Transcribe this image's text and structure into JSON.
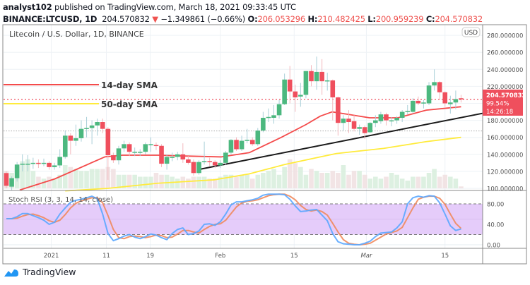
{
  "header": {
    "author": "analyst102",
    "published_text": "published on TradingView.com, March 18, 2021 09:33:45 UTC",
    "symbol": "BINANCE:LTCUSD, 1D",
    "last": "204.570832",
    "change": "−1.349861 (−0.66%)",
    "change_direction": "down",
    "o_label": "O:",
    "o": "206.053296",
    "h_label": "H:",
    "h": "210.482425",
    "l_label": "L:",
    "l": "200.959239",
    "c_label": "C:",
    "c": "204.570832"
  },
  "chart": {
    "title": "Litecoin / U.S. Dollar, 1D, BINANCE",
    "currency_badge": "USD",
    "legend": [
      {
        "label": "14-day SMA",
        "color": "#f44b4b"
      },
      {
        "label": "50-day SMA",
        "color": "#ffeb3b"
      }
    ],
    "price_tag": {
      "price": "204.570832",
      "percent": "99.54%",
      "countdown": "14:26:18",
      "color": "#ef4f5d"
    },
    "price_axis_labels": [
      "280.000000",
      "260.000000",
      "240.000000",
      "220.000000",
      "180.000000",
      "160.000000",
      "140.000000",
      "120.000000",
      "100.000000"
    ],
    "rsi_title": "Stoch RSI (3, 3, 14, 14, close)",
    "rsi_axis_labels": [
      "80.00",
      "40.00",
      "0.00"
    ],
    "date_labels": [
      {
        "label": "2021",
        "candle": 8.4
      },
      {
        "label": "11",
        "candle": 18.7
      },
      {
        "label": "19",
        "candle": 26.9
      },
      {
        "label": "Feb",
        "candle": 40
      },
      {
        "label": "15",
        "candle": 53.8
      },
      {
        "label": "Mar",
        "candle": 67.3
      },
      {
        "label": "15",
        "candle": 82
      }
    ],
    "colors": {
      "up": "#26a69a",
      "up_body": "#4cb87f",
      "down": "#ef4f5d",
      "k": "#5aa7ff",
      "d": "#f08a5d",
      "rsi_band": "#e5ccfa",
      "trendline": "#1a1a1a"
    }
  },
  "chart_data": {
    "type": "candlestick",
    "ylim": [
      100,
      285
    ],
    "current_price": 204.570832,
    "reference_line": 167.5,
    "ohlc": [
      [
        118,
        120,
        100,
        103
      ],
      [
        102,
        114,
        98,
        112
      ],
      [
        112,
        131,
        108,
        128
      ],
      [
        128,
        140,
        120,
        129
      ],
      [
        129,
        139,
        120,
        129
      ],
      [
        129,
        136,
        123,
        130
      ],
      [
        130,
        134,
        124,
        129
      ],
      [
        129,
        135,
        126,
        130
      ],
      [
        130,
        132,
        122,
        125
      ],
      [
        125,
        130,
        122,
        127
      ],
      [
        127,
        146,
        124,
        137
      ],
      [
        137,
        168,
        135,
        162
      ],
      [
        162,
        165,
        140,
        156
      ],
      [
        156,
        175,
        150,
        159
      ],
      [
        159,
        180,
        155,
        170
      ],
      [
        170,
        184,
        160,
        171
      ],
      [
        171,
        180,
        152,
        174
      ],
      [
        174,
        182,
        162,
        178
      ],
      [
        178,
        182,
        165,
        170
      ],
      [
        170,
        172,
        110,
        139
      ],
      [
        139,
        142,
        130,
        133
      ],
      [
        133,
        150,
        128,
        147
      ],
      [
        147,
        156,
        143,
        152
      ],
      [
        152,
        154,
        138,
        143
      ],
      [
        143,
        148,
        138,
        143
      ],
      [
        143,
        146,
        138,
        143
      ],
      [
        143,
        154,
        140,
        152
      ],
      [
        152,
        160,
        143,
        152
      ],
      [
        151,
        154,
        145,
        150
      ],
      [
        150,
        152,
        125,
        129
      ],
      [
        129,
        140,
        122,
        137
      ],
      [
        137,
        142,
        132,
        137
      ],
      [
        137,
        143,
        133,
        140
      ],
      [
        140,
        153,
        130,
        134
      ],
      [
        134,
        138,
        128,
        130
      ],
      [
        131,
        134,
        115,
        118
      ],
      [
        118,
        133,
        116,
        131
      ],
      [
        131,
        155,
        128,
        132
      ],
      [
        132,
        136,
        126,
        131
      ],
      [
        131,
        133,
        124,
        127
      ],
      [
        127,
        133,
        124,
        130
      ],
      [
        130,
        144,
        128,
        142
      ],
      [
        142,
        158,
        140,
        157
      ],
      [
        157,
        160,
        144,
        146
      ],
      [
        146,
        162,
        144,
        156
      ],
      [
        156,
        170,
        153,
        157
      ],
      [
        157,
        160,
        150,
        152
      ],
      [
        152,
        171,
        150,
        168
      ],
      [
        168,
        190,
        166,
        183
      ],
      [
        183,
        194,
        178,
        184
      ],
      [
        183,
        198,
        176,
        186
      ],
      [
        186,
        204,
        182,
        199
      ],
      [
        199,
        235,
        198,
        228
      ],
      [
        228,
        244,
        200,
        214
      ],
      [
        214,
        222,
        190,
        207
      ],
      [
        208,
        224,
        196,
        210
      ],
      [
        210,
        238,
        206,
        238
      ],
      [
        238,
        245,
        220,
        226
      ],
      [
        226,
        255,
        216,
        237
      ],
      [
        237,
        252,
        210,
        226
      ],
      [
        226,
        236,
        215,
        227
      ],
      [
        227,
        228,
        180,
        207
      ],
      [
        207,
        208,
        162,
        177
      ],
      [
        177,
        186,
        168,
        182
      ],
      [
        182,
        192,
        165,
        178
      ],
      [
        179,
        186,
        167,
        170
      ],
      [
        170,
        175,
        163,
        172
      ],
      [
        172,
        174,
        158,
        165
      ],
      [
        166,
        178,
        165,
        177
      ],
      [
        177,
        186,
        172,
        180
      ],
      [
        179,
        190,
        176,
        187
      ],
      [
        187,
        189,
        174,
        180
      ],
      [
        180,
        184,
        173,
        180
      ],
      [
        180,
        185,
        176,
        183
      ],
      [
        183,
        192,
        178,
        190
      ],
      [
        190,
        198,
        187,
        191
      ],
      [
        190,
        206,
        188,
        203
      ],
      [
        203,
        208,
        198,
        200
      ],
      [
        200,
        204,
        194,
        201
      ],
      [
        200,
        225,
        198,
        221
      ],
      [
        221,
        240,
        215,
        225
      ],
      [
        225,
        226,
        205,
        213
      ],
      [
        213,
        214,
        196,
        200
      ],
      [
        199,
        209,
        188,
        201
      ],
      [
        201,
        215,
        193,
        205
      ],
      [
        206,
        210,
        201,
        204.57
      ]
    ],
    "volume_relative": [
      0.45,
      0.4,
      0.55,
      0.7,
      0.75,
      0.45,
      0.3,
      0.25,
      0.3,
      0.25,
      0.35,
      0.6,
      0.55,
      0.5,
      0.45,
      0.45,
      0.5,
      0.5,
      0.5,
      0.55,
      0.5,
      0.35,
      0.35,
      0.35,
      0.35,
      0.3,
      0.3,
      0.3,
      0.4,
      0.35,
      0.35,
      0.3,
      0.25,
      0.3,
      0.25,
      0.3,
      0.3,
      0.3,
      0.25,
      0.25,
      0.3,
      0.35,
      0.35,
      0.3,
      0.35,
      0.35,
      0.25,
      0.35,
      0.4,
      0.45,
      0.5,
      0.35,
      0.55,
      0.75,
      0.65,
      0.55,
      0.35,
      0.5,
      0.45,
      0.4,
      0.4,
      0.45,
      0.4,
      0.6,
      0.35,
      0.45,
      0.45,
      0.35,
      0.25,
      0.3,
      0.25,
      0.3,
      0.4,
      0.35,
      0.25,
      0.2,
      0.3,
      0.3,
      0.3,
      0.4,
      0.5,
      0.3,
      0.35,
      0.3,
      0.25,
      0.05
    ],
    "sma14": [
      [
        2.5,
        98
      ],
      [
        9,
        111
      ],
      [
        18.4,
        137
      ],
      [
        21.7,
        139
      ],
      [
        28.3,
        139
      ],
      [
        33.6,
        138
      ],
      [
        40.2,
        137
      ],
      [
        45.4,
        142
      ],
      [
        51.4,
        160
      ],
      [
        56,
        175
      ],
      [
        58.7,
        185
      ],
      [
        60.9,
        190
      ],
      [
        63.9,
        187
      ],
      [
        67.9,
        183
      ],
      [
        73.2,
        183
      ],
      [
        78.5,
        192
      ],
      [
        85,
        196
      ]
    ],
    "sma50": [
      [
        11,
        97
      ],
      [
        19,
        100
      ],
      [
        28.3,
        106
      ],
      [
        38.8,
        110
      ],
      [
        45.4,
        117
      ],
      [
        52,
        128
      ],
      [
        58.7,
        137
      ],
      [
        61.7,
        141
      ],
      [
        70.5,
        147
      ],
      [
        78.5,
        155
      ],
      [
        85,
        160
      ]
    ],
    "trendline": [
      [
        35.8,
        122
      ],
      [
        90.4,
        190
      ]
    ],
    "stoch_rsi": {
      "levels": [
        80,
        20
      ],
      "ylim": [
        0,
        100
      ],
      "k": [
        51,
        51,
        55,
        61,
        61,
        57,
        53,
        48,
        40,
        44,
        60,
        72,
        83,
        87,
        89,
        92,
        95,
        90,
        60,
        22,
        8,
        12,
        17,
        20,
        15,
        12,
        16,
        21,
        19,
        14,
        10,
        22,
        30,
        33,
        20,
        22,
        27,
        40,
        41,
        38,
        45,
        60,
        78,
        84,
        84,
        86,
        88,
        91,
        97,
        99,
        99,
        99,
        98,
        89,
        76,
        65,
        66,
        68,
        69,
        58,
        47,
        22,
        6,
        2,
        1,
        0,
        0,
        3,
        7,
        16,
        23,
        24,
        25,
        33,
        45,
        80,
        92,
        95,
        93,
        96,
        95,
        82,
        60,
        37,
        28,
        31
      ],
      "d": [
        51,
        51,
        52,
        56,
        59,
        60,
        57,
        53,
        47,
        44,
        48,
        59,
        72,
        81,
        86,
        89,
        92,
        92,
        82,
        57,
        30,
        14,
        12,
        16,
        17,
        16,
        14,
        16,
        19,
        18,
        14,
        15,
        21,
        28,
        28,
        25,
        23,
        30,
        36,
        40,
        41,
        48,
        61,
        74,
        82,
        85,
        86,
        88,
        92,
        96,
        98,
        99,
        99,
        95,
        88,
        77,
        69,
        66,
        68,
        65,
        58,
        42,
        25,
        10,
        3,
        1,
        0,
        1,
        3,
        9,
        15,
        21,
        24,
        27,
        34,
        53,
        72,
        89,
        93,
        95,
        95,
        91,
        79,
        60,
        42,
        32
      ]
    }
  },
  "footer": {
    "brand": "TradingView"
  }
}
